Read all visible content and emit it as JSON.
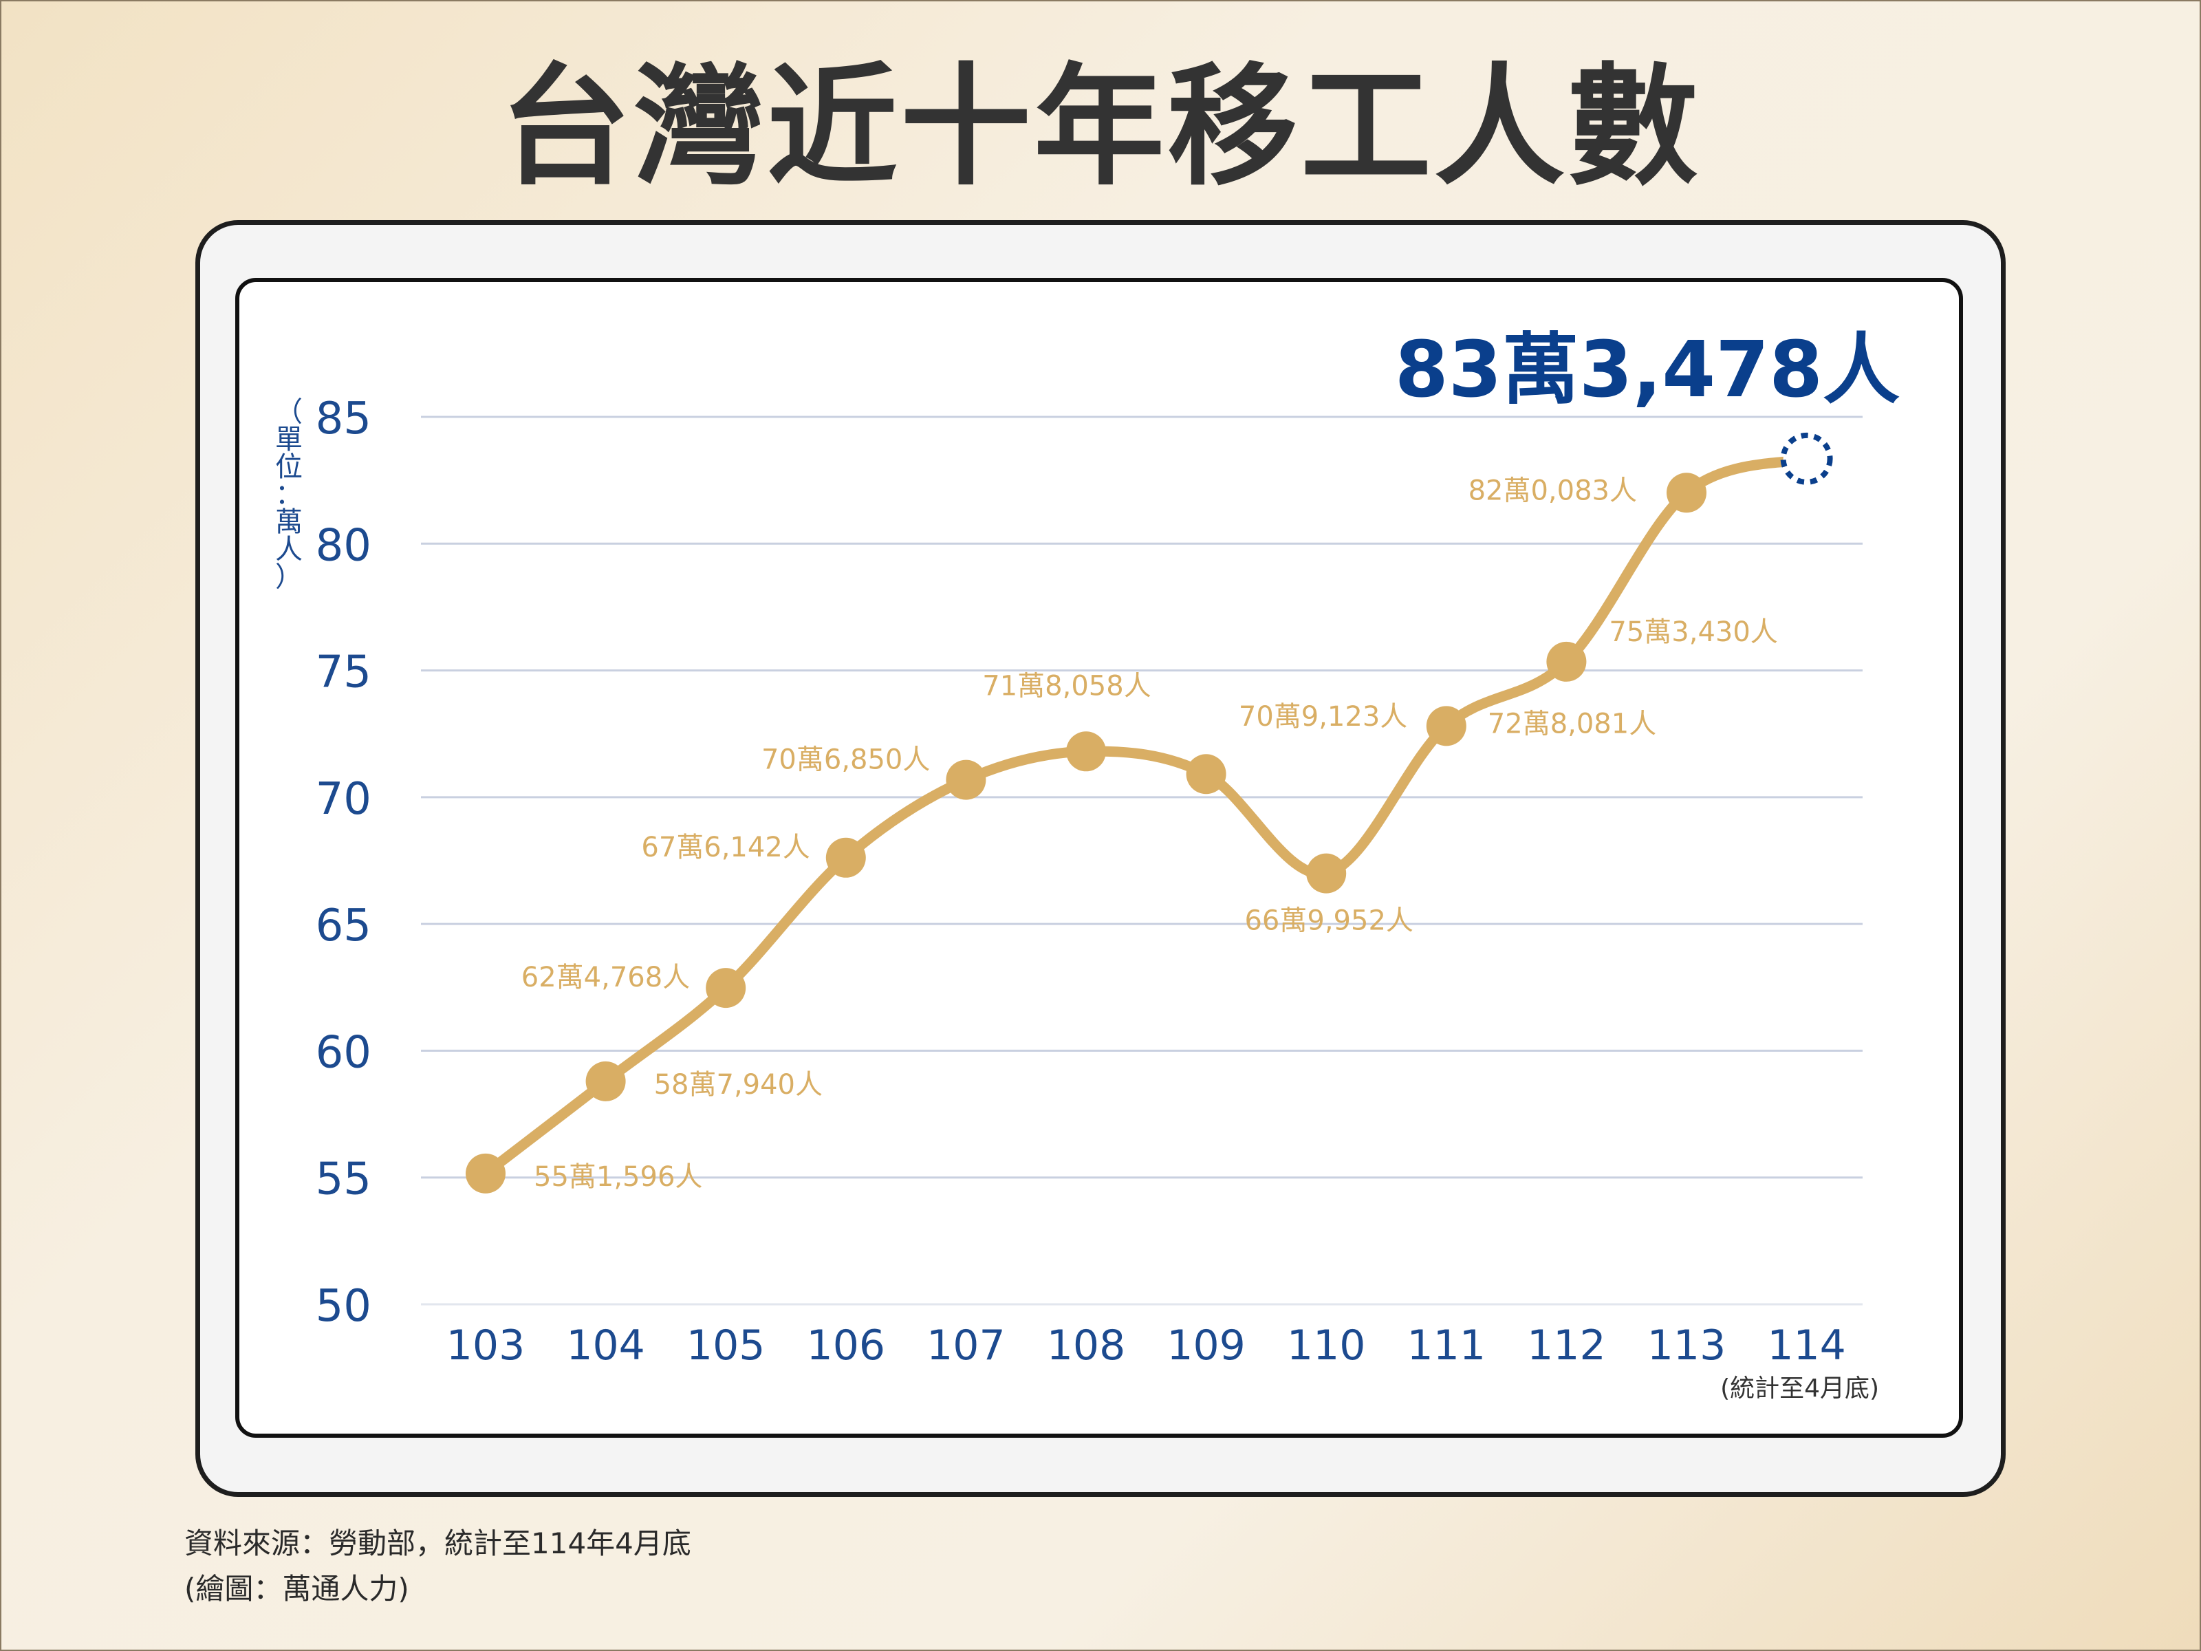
{
  "title": "台灣近十年移工人數",
  "chart_data": {
    "type": "line",
    "ylabel": "（單位：萬人）",
    "ylim": [
      50,
      85
    ],
    "yticks": [
      50,
      55,
      60,
      65,
      70,
      75,
      80,
      85
    ],
    "categories": [
      "103",
      "104",
      "105",
      "106",
      "107",
      "108",
      "109",
      "110",
      "111",
      "112",
      "113",
      "114"
    ],
    "x_note": "(統計至4月底)",
    "series": [
      {
        "values": [
          55.1596,
          58.794,
          62.4768,
          67.6142,
          70.685,
          71.8058,
          70.9123,
          66.9952,
          72.8081,
          75.343,
          82.0083,
          83.3478
        ],
        "labels": [
          "55萬1,596人",
          "58萬7,940人",
          "62萬4,768人",
          "67萬6,142人",
          "70萬6,850人",
          "71萬8,058人",
          "70萬9,123人",
          "66萬9,952人",
          "72萬8,081人",
          "75萬3,430人",
          "82萬0,083人",
          ""
        ],
        "color": "#d9ae64"
      }
    ],
    "highlight": {
      "label": "83萬3,478人",
      "color": "#0a3f8c"
    },
    "grid": true,
    "grid_color": "#c9d0e0",
    "axis_color": "#1c4a8f"
  },
  "footer": {
    "source": "資料來源：勞動部，統計至114年4月底",
    "credit": "(繪圖：萬通人力)"
  }
}
